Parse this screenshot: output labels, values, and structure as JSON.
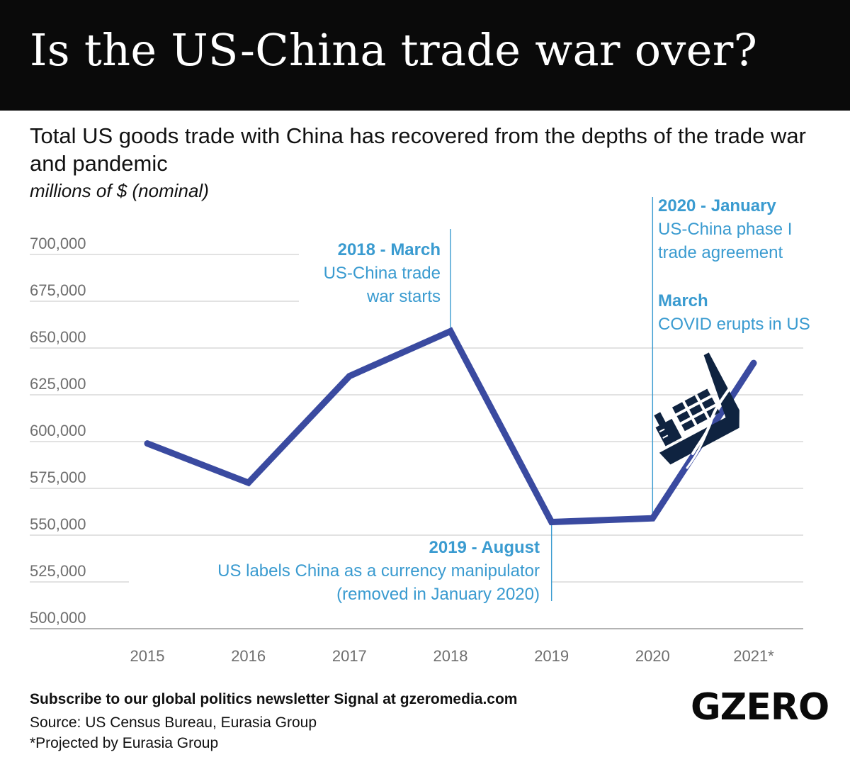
{
  "header": {
    "title": "Is the US-China trade war over?"
  },
  "subtitle": "Total US goods trade with China has recovered from the depths of the trade war and pandemic",
  "unit_label": "millions of $ (nominal)",
  "colors": {
    "line": "#3a4aa0",
    "annotation": "#3a9bd0",
    "grid": "#d0d0d0",
    "header_bg": "#0a0a0a",
    "icon": "#0f2340"
  },
  "icon": "sinking-ship-icon",
  "chart_data": {
    "type": "line",
    "title": "",
    "xlabel": "",
    "ylabel": "",
    "x": [
      2015,
      2016,
      2017,
      2018,
      2019,
      2020,
      2021
    ],
    "x_tick_labels": [
      "2015",
      "2016",
      "2017",
      "2018",
      "2019",
      "2020",
      "2021*"
    ],
    "series": [
      {
        "points": [
          {
            "x": "2015",
            "y": 599000
          },
          {
            "x": "2016",
            "y": 578000
          },
          {
            "x": "2017",
            "y": 635000
          },
          {
            "x": "2018",
            "y": 659000
          },
          {
            "x": "2019",
            "y": 557000
          },
          {
            "x": "2020",
            "y": 559000
          },
          {
            "x": "2021*",
            "y": 642000
          }
        ]
      }
    ],
    "ylim": [
      500000,
      700000
    ],
    "y_ticks": [
      500000,
      525000,
      550000,
      575000,
      600000,
      625000,
      650000,
      675000,
      700000
    ],
    "y_tick_labels": [
      "500,000",
      "525,000",
      "550,000",
      "575,000",
      "600,000",
      "625,000",
      "650,000",
      "675,000",
      "700,000"
    ],
    "grid": "horizontal",
    "annotations": [
      {
        "x": "2018",
        "title": "2018 - March",
        "lines": [
          "US-China trade",
          "war starts"
        ]
      },
      {
        "x": "2019",
        "title": "2019 - August",
        "lines": [
          "US labels China as a currency manipulator",
          "(removed in January 2020)"
        ]
      },
      {
        "x": "2020",
        "title": "2020 - January",
        "lines": [
          "US-China phase I",
          "trade agreement"
        ]
      },
      {
        "x": "2020",
        "title": "March",
        "lines": [
          "COVID erupts in US"
        ]
      }
    ]
  },
  "footer": {
    "subscribe": "Subscribe to our global politics newsletter Signal at gzeromedia.com",
    "source": "Source: US Census Bureau, Eurasia Group",
    "note": "*Projected by Eurasia Group",
    "logo": "GZERO"
  }
}
